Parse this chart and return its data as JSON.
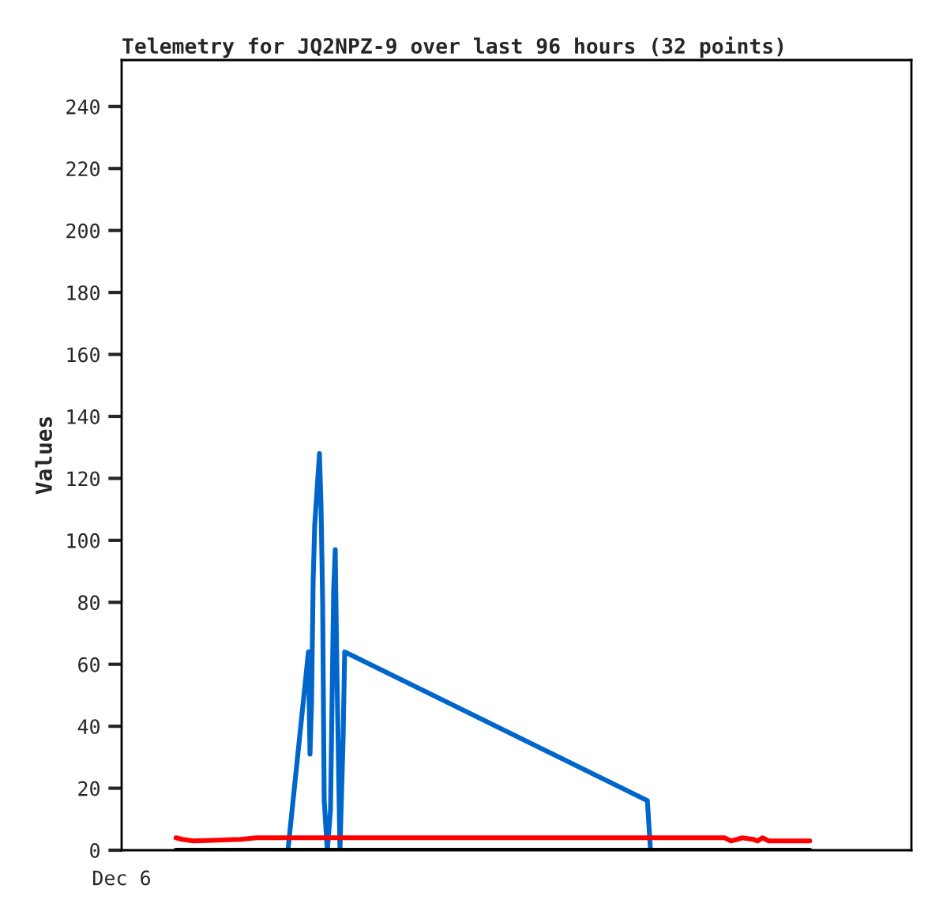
{
  "chart_data": {
    "type": "line",
    "title": "Telemetry for JQ2NPZ-9 over last 96 hours (32 points)",
    "ylabel": "Values",
    "annotations": [
      "Dec 6"
    ],
    "ylim": [
      0,
      255
    ],
    "yticks": [
      0,
      20,
      40,
      60,
      80,
      100,
      120,
      140,
      160,
      180,
      200,
      220,
      240
    ],
    "grid": false,
    "marker": "none",
    "line_style": "solid",
    "categories": [
      null,
      null,
      null,
      null,
      null,
      null,
      null,
      null,
      null,
      null,
      null,
      null,
      null,
      null,
      null,
      null,
      null,
      null,
      null,
      null,
      null,
      null,
      null,
      null,
      null,
      null,
      null,
      null,
      null,
      null,
      null,
      null,
      null,
      null,
      null,
      null,
      null,
      null,
      null,
      null,
      null,
      null,
      null,
      null,
      null,
      null,
      null,
      null,
      null,
      null,
      null,
      null,
      null,
      null,
      null,
      null,
      null,
      null,
      null,
      null,
      null,
      null,
      null,
      null,
      null,
      null,
      null,
      null,
      null,
      null,
      null,
      null,
      null,
      null,
      null,
      null,
      null,
      null,
      null,
      null,
      null,
      null,
      null,
      null,
      null,
      null,
      null,
      null,
      null,
      null,
      null,
      null,
      null,
      null,
      null,
      null,
      null,
      null,
      null,
      null,
      null,
      null,
      null,
      null,
      null,
      null,
      null,
      null,
      null,
      null,
      null,
      null,
      null,
      null,
      null,
      null,
      null,
      null,
      null,
      null,
      null,
      null,
      null,
      null,
      null,
      null,
      null,
      null,
      null,
      null,
      null,
      null,
      null,
      null,
      null,
      null,
      null,
      null,
      null,
      null,
      null,
      null,
      null,
      null,
      null,
      null,
      null,
      null,
      null,
      null,
      null,
      null,
      null,
      null,
      null,
      null,
      null,
      null,
      null,
      null,
      null,
      null,
      null,
      null,
      null,
      null,
      null,
      null,
      null,
      null,
      null,
      null,
      null,
      null,
      null,
      null,
      null,
      null,
      null,
      null,
      null,
      null,
      null,
      null,
      null,
      null,
      null,
      null,
      null,
      null,
      null,
      null,
      null,
      null,
      null,
      null,
      null,
      null,
      null,
      null,
      null,
      null,
      null,
      null,
      null,
      null,
      null,
      null,
      null,
      null,
      null,
      null,
      null,
      null,
      null,
      null,
      null,
      null,
      null,
      null,
      null,
      null,
      null,
      null,
      null,
      null,
      null,
      null,
      null,
      null,
      null,
      null,
      null,
      null,
      null,
      null,
      null,
      null,
      null,
      null,
      null,
      null,
      null,
      null,
      null,
      null,
      null,
      null,
      null,
      null,
      null,
      null,
      null,
      null,
      null,
      null,
      null,
      null,
      null,
      null,
      null,
      null,
      null,
      null,
      null,
      null,
      null,
      null,
      null,
      null,
      null,
      null,
      null,
      null,
      null,
      null,
      null,
      null,
      null,
      null,
      null,
      null,
      null,
      null,
      null,
      null,
      null,
      null,
      null,
      null,
      null,
      null,
      null,
      null,
      null,
      null,
      null,
      null,
      null,
      null,
      null,
      null,
      null,
      null,
      null,
      null,
      null,
      null,
      null,
      null,
      null,
      null,
      null,
      null,
      null,
      null,
      null,
      null,
      null,
      null,
      null,
      null,
      null,
      null,
      null,
      null,
      null,
      null,
      null,
      null,
      null,
      null,
      null,
      null,
      null,
      null,
      null,
      null,
      null,
      null,
      null,
      null,
      null,
      null,
      null,
      null,
      null,
      null,
      null,
      null,
      null,
      null,
      null,
      null,
      null,
      null,
      null,
      null,
      null,
      null,
      null,
      null,
      null,
      null,
      null,
      null,
      null,
      null,
      null,
      null,
      null,
      null,
      null,
      null,
      null,
      null,
      null,
      null,
      null,
      null,
      null,
      null,
      null,
      null,
      null,
      null,
      null,
      null,
      null,
      null,
      null,
      null,
      null,
      null,
      null,
      null,
      null,
      null,
      null,
      null,
      null,
      null,
      null,
      null,
      null,
      null,
      null,
      null,
      null,
      null,
      null,
      null,
      null,
      null,
      null,
      null,
      null,
      null,
      null,
      null,
      null,
      null,
      null,
      null,
      null,
      null,
      null,
      null,
      null,
      null,
      null,
      null,
      null,
      null,
      null,
      null,
      null,
      null,
      null,
      null,
      null,
      null,
      null,
      null,
      null,
      null,
      null,
      null,
      null,
      null,
      null,
      null,
      null,
      null,
      null,
      null,
      null,
      null,
      null,
      null,
      null,
      null,
      null,
      null,
      null,
      null,
      null,
      null,
      null,
      null,
      null,
      null,
      null,
      null,
      null,
      null,
      null,
      null,
      null,
      null,
      null,
      null,
      null,
      null,
      null,
      null,
      null,
      null,
      null,
      null,
      null,
      null,
      null,
      null,
      null,
      null,
      null,
      null,
      null,
      null,
      null
    ],
    "series": [
      {
        "color": "#0066cc",
        "values": [
          null,
          null,
          null,
          null,
          null,
          null,
          null,
          null,
          null,
          null,
          null,
          null,
          null,
          null,
          null,
          null,
          null,
          null,
          null,
          null,
          null,
          null,
          null,
          null,
          null,
          null,
          null,
          null,
          null,
          null,
          null,
          null,
          null,
          null,
          null,
          null,
          null,
          null,
          null,
          null,
          null,
          null,
          null,
          null,
          null,
          null,
          null,
          null,
          null,
          null,
          null,
          null,
          null,
          null,
          null,
          null,
          null,
          null,
          null,
          null,
          null,
          null,
          null,
          null,
          null,
          null,
          null,
          null,
          null,
          null,
          null,
          null,
          null,
          null,
          null,
          null,
          null,
          null,
          null,
          null,
          null,
          null,
          null,
          null,
          null,
          null,
          null,
          null,
          null,
          null,
          null,
          null,
          null,
          null,
          null,
          null,
          null,
          null,
          null,
          null,
          null,
          null,
          null,
          null,
          null,
          0,
          null,
          null,
          null,
          null,
          null,
          null,
          null,
          null,
          null,
          null,
          null,
          null,
          64,
          31,
          48,
          87,
          105,
          null,
          null,
          128,
          111,
          81,
          16,
          null,
          0,
          null,
          13,
          null,
          84,
          97,
          60,
          null,
          0,
          null,
          36,
          64,
          null,
          null,
          null,
          null,
          null,
          null,
          null,
          null,
          null,
          null,
          null,
          null,
          null,
          null,
          null,
          null,
          null,
          null,
          null,
          null,
          null,
          null,
          null,
          null,
          null,
          null,
          null,
          null,
          null,
          null,
          null,
          null,
          null,
          null,
          null,
          null,
          null,
          null,
          null,
          null,
          null,
          null,
          null,
          null,
          null,
          null,
          null,
          null,
          null,
          null,
          null,
          null,
          null,
          null,
          null,
          null,
          null,
          null,
          null,
          null,
          null,
          null,
          null,
          null,
          null,
          null,
          null,
          null,
          null,
          null,
          null,
          null,
          null,
          null,
          null,
          null,
          null,
          null,
          null,
          null,
          null,
          null,
          null,
          null,
          null,
          null,
          null,
          null,
          null,
          null,
          null,
          null,
          null,
          null,
          null,
          null,
          null,
          null,
          null,
          null,
          null,
          null,
          null,
          null,
          null,
          null,
          null,
          null,
          null,
          null,
          null,
          null,
          null,
          null,
          null,
          null,
          null,
          null,
          null,
          null,
          null,
          null,
          null,
          null,
          null,
          null,
          null,
          null,
          null,
          null,
          null,
          null,
          null,
          null,
          null,
          null,
          null,
          null,
          null,
          null,
          null,
          null,
          null,
          null,
          null,
          null,
          null,
          null,
          null,
          null,
          null,
          null,
          null,
          null,
          null,
          null,
          null,
          null,
          null,
          null,
          null,
          null,
          null,
          null,
          null,
          null,
          null,
          null,
          null,
          null,
          null,
          null,
          null,
          null,
          null,
          null,
          null,
          null,
          null,
          null,
          null,
          null,
          null,
          null,
          null,
          null,
          null,
          null,
          null,
          null,
          null,
          16,
          null,
          0,
          null,
          null,
          null,
          null,
          null,
          null,
          null,
          null,
          null,
          null,
          null,
          null,
          null,
          null,
          null,
          null,
          null,
          null,
          null,
          null,
          null,
          null,
          null,
          null,
          null,
          null,
          null,
          null,
          null,
          null,
          null,
          null,
          null,
          null,
          null,
          null,
          null,
          null,
          null,
          null,
          null,
          null,
          null,
          null,
          null,
          null,
          null,
          null,
          null,
          null,
          null,
          null,
          null,
          null,
          null,
          null,
          null,
          null,
          null,
          null,
          null,
          null,
          null,
          null,
          null,
          null,
          null,
          null,
          null,
          null,
          null,
          null,
          null,
          null,
          null,
          null,
          null,
          null,
          null,
          null,
          null,
          null,
          null,
          null,
          null,
          null,
          null,
          null,
          null,
          null,
          null,
          null,
          null,
          null,
          null,
          null,
          null,
          null,
          null,
          null,
          null,
          null,
          null,
          null,
          null,
          null,
          null,
          null,
          null,
          null,
          null,
          null,
          null,
          null,
          null,
          null,
          null,
          null,
          null,
          null,
          null,
          null,
          null,
          null,
          null,
          null,
          null,
          null,
          null,
          null,
          null,
          null,
          null,
          null,
          null,
          null,
          null,
          null,
          null,
          null,
          null,
          null,
          null,
          null,
          null,
          null,
          null,
          null,
          null,
          null,
          null,
          null,
          null,
          null,
          null,
          null,
          null,
          null,
          null,
          null,
          null,
          null,
          null,
          null,
          null
        ]
      },
      {
        "color": "#ff0000",
        "values": [
          null,
          null,
          null,
          null,
          null,
          null,
          null,
          null,
          null,
          null,
          null,
          null,
          null,
          null,
          null,
          null,
          null,
          null,
          null,
          null,
          null,
          null,
          null,
          null,
          null,
          null,
          null,
          null,
          null,
          null,
          null,
          null,
          null,
          null,
          4,
          null,
          null,
          null,
          3.5,
          null,
          null,
          null,
          null,
          null,
          null,
          3,
          null,
          null,
          null,
          null,
          null,
          null,
          null,
          null,
          null,
          null,
          null,
          null,
          null,
          null,
          null,
          null,
          null,
          null,
          null,
          null,
          null,
          null,
          null,
          null,
          null,
          null,
          null,
          null,
          null,
          3.5,
          null,
          null,
          null,
          null,
          null,
          null,
          null,
          null,
          null,
          4,
          null,
          null,
          null,
          null,
          null,
          null,
          null,
          null,
          null,
          null,
          null,
          null,
          null,
          null,
          null,
          null,
          null,
          null,
          null,
          null,
          null,
          null,
          null,
          null,
          null,
          null,
          null,
          null,
          null,
          null,
          null,
          null,
          null,
          null,
          null,
          null,
          null,
          null,
          null,
          null,
          null,
          null,
          null,
          null,
          null,
          null,
          null,
          null,
          null,
          null,
          null,
          null,
          null,
          null,
          null,
          null,
          null,
          null,
          null,
          null,
          null,
          null,
          null,
          null,
          null,
          null,
          null,
          null,
          null,
          null,
          null,
          null,
          null,
          null,
          null,
          null,
          null,
          null,
          null,
          null,
          null,
          null,
          null,
          null,
          null,
          null,
          null,
          null,
          null,
          null,
          null,
          null,
          null,
          null,
          null,
          null,
          null,
          null,
          null,
          null,
          null,
          null,
          null,
          null,
          null,
          null,
          null,
          null,
          null,
          null,
          null,
          null,
          null,
          null,
          null,
          null,
          null,
          null,
          null,
          null,
          null,
          null,
          null,
          null,
          null,
          null,
          null,
          null,
          null,
          null,
          null,
          null,
          null,
          null,
          null,
          null,
          null,
          null,
          null,
          null,
          null,
          null,
          null,
          null,
          null,
          null,
          null,
          null,
          null,
          null,
          null,
          null,
          null,
          null,
          null,
          null,
          null,
          null,
          null,
          null,
          null,
          null,
          null,
          null,
          null,
          null,
          null,
          null,
          null,
          null,
          null,
          null,
          null,
          null,
          null,
          null,
          null,
          null,
          null,
          null,
          null,
          null,
          null,
          null,
          null,
          null,
          null,
          null,
          null,
          null,
          null,
          null,
          null,
          null,
          null,
          null,
          null,
          null,
          null,
          null,
          null,
          null,
          null,
          null,
          null,
          null,
          null,
          null,
          null,
          null,
          null,
          null,
          null,
          null,
          null,
          null,
          null,
          null,
          null,
          null,
          null,
          null,
          null,
          null,
          null,
          null,
          null,
          null,
          null,
          null,
          null,
          null,
          null,
          null,
          null,
          null,
          null,
          null,
          null,
          null,
          null,
          null,
          null,
          null,
          null,
          null,
          null,
          null,
          null,
          null,
          null,
          null,
          null,
          null,
          null,
          null,
          null,
          null,
          null,
          null,
          null,
          null,
          null,
          null,
          null,
          null,
          null,
          null,
          null,
          null,
          null,
          null,
          null,
          null,
          null,
          null,
          null,
          null,
          null,
          null,
          null,
          null,
          null,
          null,
          null,
          null,
          null,
          null,
          null,
          null,
          null,
          null,
          null,
          null,
          null,
          null,
          4,
          null,
          null,
          null,
          3,
          null,
          null,
          null,
          3.5,
          null,
          null,
          4,
          null,
          null,
          null,
          null,
          null,
          null,
          3.5,
          null,
          null,
          3,
          null,
          null,
          4,
          null,
          null,
          null,
          3,
          null,
          null,
          null,
          null,
          null,
          null,
          null,
          null,
          null,
          null,
          null,
          null,
          null,
          null,
          null,
          null,
          null,
          null,
          null,
          null,
          null,
          null,
          null,
          null,
          null,
          3,
          null,
          null,
          null,
          null,
          null,
          null,
          null,
          null,
          null,
          null,
          null,
          null,
          null,
          null,
          null,
          null,
          null,
          null,
          null,
          null,
          null,
          null,
          null,
          null,
          null,
          null,
          null,
          null,
          null,
          null,
          null,
          null,
          null,
          null,
          null,
          null,
          null,
          null,
          null,
          null,
          null,
          null,
          null,
          null,
          null,
          null,
          null,
          null,
          null,
          null,
          null,
          null,
          null,
          null,
          null,
          null,
          null,
          null,
          null,
          null,
          null,
          null,
          null,
          null
        ]
      },
      {
        "color": "#000000",
        "values": [
          null,
          null,
          null,
          null,
          null,
          null,
          null,
          null,
          null,
          null,
          null,
          null,
          null,
          null,
          null,
          null,
          null,
          null,
          null,
          null,
          null,
          null,
          null,
          null,
          null,
          null,
          null,
          null,
          null,
          null,
          null,
          null,
          null,
          null,
          0,
          null,
          null,
          null,
          null,
          null,
          null,
          null,
          null,
          null,
          null,
          null,
          null,
          null,
          null,
          null,
          null,
          null,
          null,
          null,
          null,
          null,
          null,
          null,
          null,
          null,
          null,
          null,
          null,
          null,
          null,
          null,
          null,
          null,
          null,
          null,
          null,
          null,
          null,
          null,
          null,
          null,
          null,
          null,
          null,
          null,
          null,
          null,
          null,
          null,
          null,
          null,
          null,
          null,
          null,
          null,
          null,
          null,
          null,
          null,
          null,
          null,
          null,
          null,
          null,
          null,
          null,
          null,
          null,
          null,
          null,
          null,
          null,
          null,
          null,
          null,
          null,
          null,
          null,
          null,
          null,
          null,
          null,
          null,
          null,
          null,
          null,
          null,
          null,
          null,
          null,
          null,
          null,
          null,
          null,
          null,
          null,
          null,
          null,
          null,
          null,
          null,
          null,
          null,
          null,
          null,
          null,
          null,
          null,
          null,
          null,
          null,
          null,
          null,
          null,
          null,
          null,
          null,
          null,
          null,
          null,
          null,
          null,
          null,
          null,
          null,
          null,
          null,
          null,
          null,
          null,
          null,
          null,
          null,
          null,
          null,
          null,
          null,
          null,
          null,
          null,
          null,
          null,
          null,
          null,
          null,
          null,
          null,
          null,
          null,
          null,
          null,
          null,
          null,
          null,
          null,
          null,
          null,
          null,
          null,
          null,
          null,
          null,
          null,
          null,
          null,
          null,
          null,
          null,
          null,
          null,
          null,
          null,
          null,
          null,
          null,
          null,
          null,
          null,
          null,
          null,
          null,
          null,
          null,
          null,
          null,
          null,
          null,
          null,
          null,
          null,
          null,
          null,
          null,
          null,
          null,
          null,
          null,
          null,
          null,
          null,
          null,
          null,
          null,
          null,
          null,
          null,
          null,
          null,
          null,
          null,
          null,
          null,
          null,
          null,
          null,
          null,
          null,
          null,
          null,
          null,
          null,
          null,
          null,
          null,
          null,
          null,
          null,
          null,
          null,
          null,
          null,
          null,
          null,
          null,
          null,
          null,
          null,
          null,
          null,
          null,
          null,
          null,
          null,
          null,
          null,
          null,
          null,
          null,
          null,
          null,
          null,
          null,
          null,
          null,
          null,
          null,
          null,
          null,
          null,
          null,
          null,
          null,
          null,
          null,
          null,
          null,
          null,
          null,
          null,
          null,
          null,
          null,
          null,
          null,
          null,
          null,
          null,
          null,
          null,
          null,
          null,
          null,
          null,
          null,
          null,
          null,
          null,
          null,
          null,
          null,
          null,
          null,
          null,
          null,
          null,
          null,
          null,
          null,
          null,
          null,
          null,
          null,
          null,
          null,
          null,
          null,
          null,
          null,
          null,
          null,
          null,
          null,
          null,
          null,
          null,
          null,
          null,
          null,
          null,
          null,
          null,
          null,
          null,
          null,
          null,
          null,
          null,
          null,
          null,
          null,
          null,
          null,
          null,
          null,
          null,
          null,
          null,
          null,
          null,
          null,
          null,
          null,
          null,
          null,
          null,
          null,
          null,
          null,
          null,
          null,
          null,
          null,
          null,
          null,
          null,
          null,
          null,
          null,
          null,
          null,
          null,
          null,
          null,
          null,
          null,
          null,
          null,
          null,
          null,
          null,
          null,
          null,
          null,
          null,
          null,
          null,
          null,
          null,
          null,
          null,
          null,
          null,
          null,
          null,
          null,
          null,
          null,
          null,
          null,
          null,
          null,
          null,
          null,
          null,
          null,
          null,
          null,
          null,
          null,
          null,
          null,
          0,
          null,
          null,
          null,
          null,
          null,
          null,
          null,
          null,
          null,
          null,
          null,
          null,
          null,
          null,
          null,
          null,
          null,
          null,
          null,
          null,
          null,
          null,
          null,
          null,
          null,
          null,
          null,
          null,
          null,
          null,
          null,
          null,
          null,
          null,
          null,
          null,
          null,
          null,
          null,
          null,
          null,
          null,
          null,
          null,
          null,
          null,
          null,
          null,
          null,
          null,
          null,
          null,
          null,
          null,
          null,
          null,
          null,
          null,
          null,
          null,
          null,
          null,
          null,
          null
        ]
      }
    ]
  }
}
